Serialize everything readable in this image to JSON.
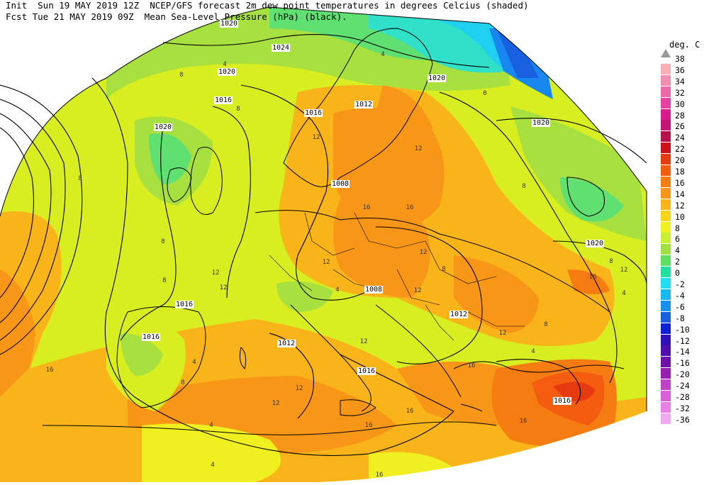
{
  "header": {
    "line1": "Init  Sun 19 MAY 2019 12Z  NCEP/GFS forecast 2m dew point temperatures in degrees Celcius (shaded)",
    "line2": "Fcst Tue 21 MAY 2019 09Z  Mean Sea-Level Pressure (hPa) (black)."
  },
  "legend": {
    "title": "deg. C",
    "entries": [
      {
        "label": "38",
        "color": ""
      },
      {
        "label": "36",
        "color": "#f7b0b8"
      },
      {
        "label": "34",
        "color": "#f08fb0"
      },
      {
        "label": "32",
        "color": "#ec6aa8"
      },
      {
        "label": "30",
        "color": "#e840a0"
      },
      {
        "label": "28",
        "color": "#d81c8c"
      },
      {
        "label": "26",
        "color": "#c41476"
      },
      {
        "label": "24",
        "color": "#b8104a"
      },
      {
        "label": "22",
        "color": "#d01018"
      },
      {
        "label": "20",
        "color": "#e83a10"
      },
      {
        "label": "18",
        "color": "#f45c10"
      },
      {
        "label": "16",
        "color": "#f57c10"
      },
      {
        "label": "14",
        "color": "#f89618"
      },
      {
        "label": "12",
        "color": "#f8b418"
      },
      {
        "label": "10",
        "color": "#f8d418"
      },
      {
        "label": "8",
        "color": "#f0f020"
      },
      {
        "label": "6",
        "color": "#c8f030"
      },
      {
        "label": "4",
        "color": "#a0e040"
      },
      {
        "label": "2",
        "color": "#60e060"
      },
      {
        "label": "0",
        "color": "#20e0a0"
      },
      {
        "label": "-2",
        "color": "#20e0f0"
      },
      {
        "label": "-4",
        "color": "#18b8f0"
      },
      {
        "label": "-6",
        "color": "#1890f0"
      },
      {
        "label": "-8",
        "color": "#1860e0"
      },
      {
        "label": "-10",
        "color": "#1020d8"
      },
      {
        "label": "-12",
        "color": "#3010b8"
      },
      {
        "label": "-14",
        "color": "#5010b0"
      },
      {
        "label": "-16",
        "color": "#7010a8"
      },
      {
        "label": "-20",
        "color": "#9820b0"
      },
      {
        "label": "-24",
        "color": "#c040c8"
      },
      {
        "label": "-28",
        "color": "#d860d8"
      },
      {
        "label": "-32",
        "color": "#e880e8"
      },
      {
        "label": "-36",
        "color": "#f0a8f0"
      }
    ]
  },
  "map": {
    "isobar_labels": [
      "1020",
      "1024",
      "1020",
      "1016",
      "1020",
      "1016",
      "1012",
      "1020",
      "1020",
      "1008",
      "1020",
      "1008",
      "1016",
      "1012",
      "1012",
      "1016",
      "1016",
      "1016"
    ],
    "dewpoint_labels": [
      "8",
      "4",
      "4",
      "8",
      "8",
      "12",
      "16",
      "12",
      "8",
      "12",
      "12",
      "16",
      "12",
      "8",
      "12",
      "16",
      "16",
      "12",
      "8",
      "4",
      "8",
      "12",
      "12",
      "16",
      "4",
      "4",
      "12",
      "12",
      "4",
      "16",
      "4",
      "16",
      "8",
      "0",
      "12",
      "8",
      "4",
      "8",
      "16",
      "16"
    ]
  }
}
